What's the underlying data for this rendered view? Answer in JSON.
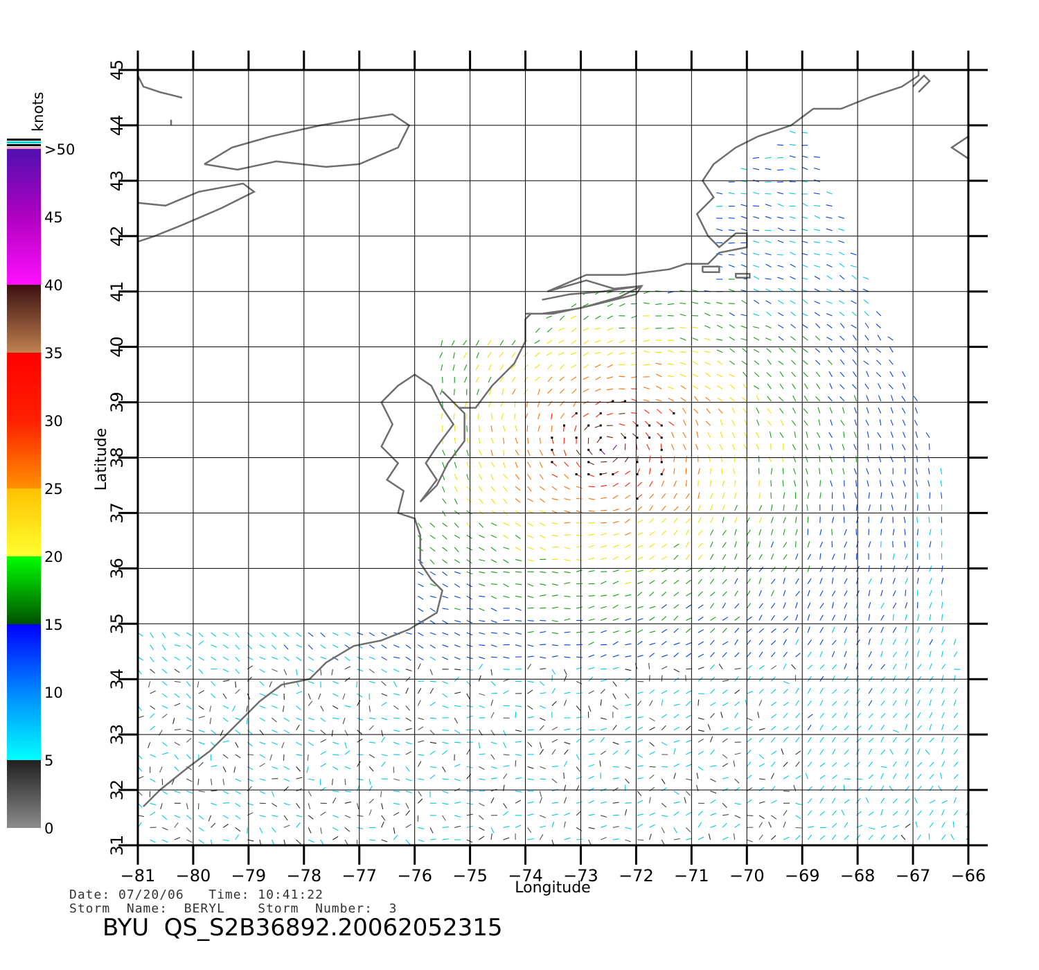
{
  "map": {
    "lon_range": [
      -81,
      -66
    ],
    "lat_range": [
      31,
      45
    ],
    "lon_ticks": [
      "−81",
      "−80",
      "−79",
      "−78",
      "−77",
      "−76",
      "−75",
      "−74",
      "−73",
      "−72",
      "−71",
      "−70",
      "−69",
      "−68",
      "−67",
      "−66"
    ],
    "lat_ticks": [
      "31",
      "32",
      "33",
      "34",
      "35",
      "36",
      "37",
      "38",
      "39",
      "40",
      "41",
      "42",
      "43",
      "44",
      "45"
    ],
    "xlabel": "Longitude",
    "ylabel": "Latitude",
    "grid": true,
    "coast_color": "#6e6e6e",
    "colorbar": {
      "unit": "knots",
      "labels": [
        "0",
        "5",
        "10",
        "15",
        "20",
        "25",
        "30",
        "35",
        "40",
        "45",
        ">50"
      ],
      "stops": [
        {
          "value": 0,
          "color": "#8c8c8c"
        },
        {
          "value": 5,
          "color": "#202020"
        },
        {
          "value": 5,
          "color": "#00ffff"
        },
        {
          "value": 10,
          "color": "#0088ff"
        },
        {
          "value": 15,
          "color": "#0000ff"
        },
        {
          "value": 15,
          "color": "#005000"
        },
        {
          "value": 20,
          "color": "#00ff00"
        },
        {
          "value": 20,
          "color": "#ffff30"
        },
        {
          "value": 25,
          "color": "#ffc000"
        },
        {
          "value": 25,
          "color": "#ff9000"
        },
        {
          "value": 30,
          "color": "#ff2000"
        },
        {
          "value": 35,
          "color": "#ff0000"
        },
        {
          "value": 35,
          "color": "#c08050"
        },
        {
          "value": 40,
          "color": "#3a1010"
        },
        {
          "value": 40,
          "color": "#ff10ff"
        },
        {
          "value": 45,
          "color": "#b000c0"
        },
        {
          "value": 50,
          "color": "#5010b0"
        }
      ]
    },
    "storm_center": {
      "lon": -72.5,
      "lat": 38.2
    }
  },
  "info": {
    "date_line": "Date: 07/20/06   Time: 10:41:22",
    "storm_line": "Storm  Name:  BERYL    Storm  Number:  3",
    "product": "BYU  QS_S2B36892.20062052315"
  }
}
